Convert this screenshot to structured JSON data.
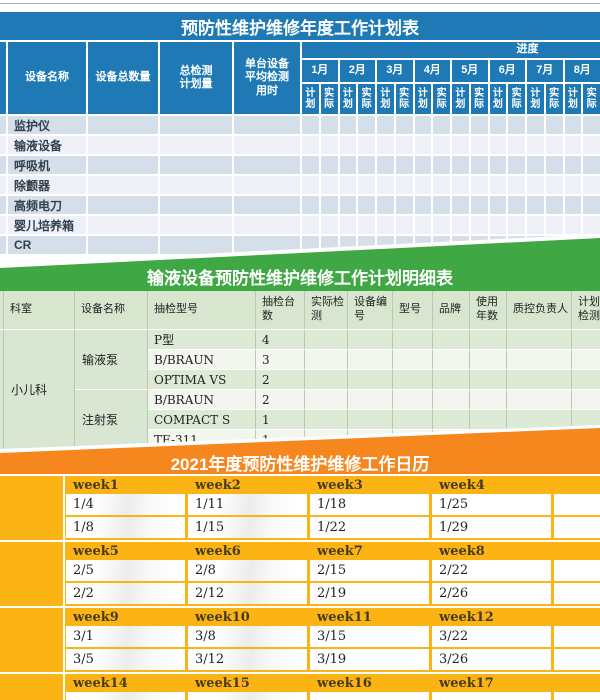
{
  "annual_table": {
    "title": "预防性维护维修年度工作计划表",
    "columns": [
      "设备名称",
      "设备总数量",
      "总检测计划量",
      "单台设备平均检测用时"
    ],
    "progress_label": "进度",
    "months": [
      "1月",
      "2月",
      "3月",
      "4月",
      "5月",
      "6月",
      "7月",
      "8月"
    ],
    "subcol_plan": "计划",
    "subcol_actual": "实际",
    "devices": [
      "监护仪",
      "输液设备",
      "呼吸机",
      "除颤器",
      "高频电刀",
      "婴儿培养箱",
      "CR"
    ]
  },
  "detail_table": {
    "title": "输液设备预防性维护维修工作计划明细表",
    "columns": [
      "科室",
      "设备名称",
      "抽检型号",
      "抽检台数",
      "实际检测",
      "设备编号",
      "型号",
      "品牌",
      "使用年数",
      "质控负责人",
      "计划检测"
    ],
    "department": "小儿科",
    "groups": [
      {
        "device": "输液泵",
        "rows": [
          {
            "model": "P型",
            "count": "4"
          },
          {
            "model": "B/BRAUN",
            "count": "3"
          },
          {
            "model": "OPTIMA VS",
            "count": "2"
          }
        ]
      },
      {
        "device": "注射泵",
        "rows": [
          {
            "model": "B/BRAUN",
            "count": "2"
          },
          {
            "model": "COMPACT S",
            "count": "1"
          },
          {
            "model": "TE-311",
            "count": "1"
          }
        ]
      }
    ]
  },
  "calendar": {
    "title": "2021年度预防性维护维修工作日历",
    "groups": [
      {
        "weeks": [
          "week1",
          "week2",
          "week3",
          "week4"
        ],
        "rows": [
          [
            "1/4",
            "1/11",
            "1/18",
            "1/25"
          ],
          [
            "1/8",
            "1/15",
            "1/22",
            "1/29"
          ]
        ]
      },
      {
        "weeks": [
          "week5",
          "week6",
          "week7",
          "week8"
        ],
        "rows": [
          [
            "2/5",
            "2/8",
            "2/15",
            "2/22"
          ],
          [
            "2/2",
            "2/12",
            "2/19",
            "2/26"
          ]
        ]
      },
      {
        "weeks": [
          "week9",
          "week10",
          "week11",
          "week12"
        ],
        "rows": [
          [
            "3/1",
            "3/8",
            "3/15",
            "3/22"
          ],
          [
            "3/5",
            "3/12",
            "3/19",
            "3/26"
          ]
        ]
      },
      {
        "weeks": [
          "week14",
          "week15",
          "week16",
          "week17"
        ],
        "rows": [
          [
            "",
            "",
            "",
            ""
          ]
        ]
      }
    ]
  },
  "colors": {
    "blue": "#1e79b5",
    "green": "#3fa845",
    "orange": "#f6871f",
    "yellow": "#fcb415"
  }
}
